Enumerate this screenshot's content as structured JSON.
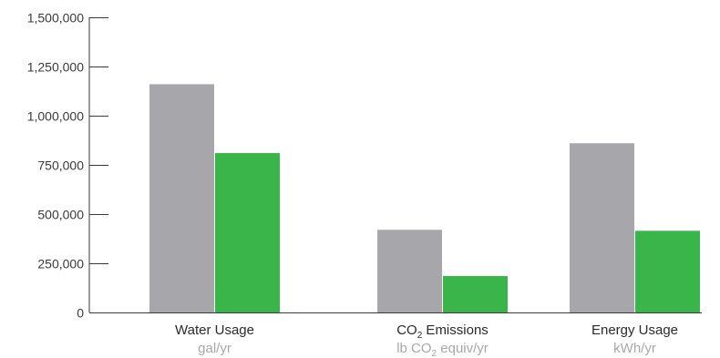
{
  "chart_data": {
    "type": "bar",
    "categories": [
      {
        "label": "Water Usage",
        "label_parts": [
          {
            "text": "Water Usage"
          }
        ],
        "unit_parts": [
          {
            "text": "gal/yr"
          }
        ]
      },
      {
        "label": "CO2 Emissions",
        "label_parts": [
          {
            "text": "CO"
          },
          {
            "text": "2",
            "sub": true
          },
          {
            "text": " Emissions"
          }
        ],
        "unit_parts": [
          {
            "text": "lb CO"
          },
          {
            "text": "2",
            "sub": true
          },
          {
            "text": " equiv/yr"
          }
        ]
      },
      {
        "label": "Energy Usage",
        "label_parts": [
          {
            "text": "Energy Usage"
          }
        ],
        "unit_parts": [
          {
            "text": "kWh/yr"
          }
        ]
      }
    ],
    "series": [
      {
        "values": [
          1160000,
          420000,
          860000
        ],
        "color": "#a7a6aa"
      },
      {
        "values": [
          810000,
          185000,
          415000
        ],
        "color": "#3ab54a"
      }
    ],
    "ylim": [
      0,
      1500000
    ],
    "yticks": [
      {
        "value": 0,
        "label": "0"
      },
      {
        "value": 250000,
        "label": "250,000"
      },
      {
        "value": 500000,
        "label": "500,000"
      },
      {
        "value": 750000,
        "label": "750,000"
      },
      {
        "value": 1000000,
        "label": "1,000,000"
      },
      {
        "value": 1250000,
        "label": "1,250,000"
      },
      {
        "value": 1500000,
        "label": "1,500,000"
      }
    ],
    "grid": false,
    "legend": "none",
    "axis_color": "#3a3a3a"
  }
}
